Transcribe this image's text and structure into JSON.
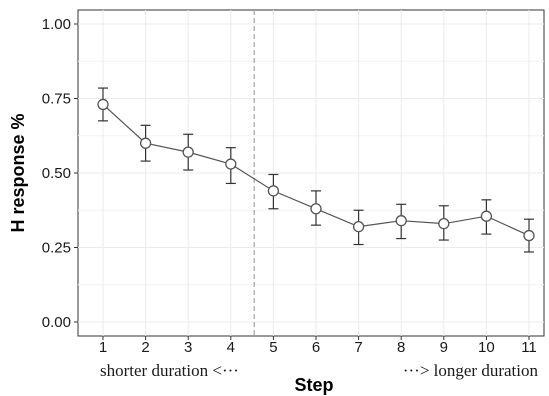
{
  "chart_data": {
    "type": "line",
    "title": "",
    "xlabel": "Step",
    "ylabel": "H response %",
    "x": [
      "1",
      "2",
      "3",
      "4",
      "5",
      "6",
      "7",
      "8",
      "9",
      "10",
      "11"
    ],
    "y_ticks": [
      "0.00",
      "0.25",
      "0.50",
      "0.75",
      "1.00"
    ],
    "ylim": [
      0.0,
      1.04
    ],
    "grid": true,
    "series": [
      {
        "values": [
          0.73,
          0.6,
          0.57,
          0.53,
          0.44,
          0.38,
          0.32,
          0.34,
          0.33,
          0.355,
          0.29
        ],
        "error_upper": [
          0.785,
          0.66,
          0.63,
          0.585,
          0.495,
          0.44,
          0.375,
          0.395,
          0.39,
          0.41,
          0.345
        ],
        "error_lower": [
          0.675,
          0.54,
          0.51,
          0.465,
          0.38,
          0.325,
          0.26,
          0.28,
          0.275,
          0.295,
          0.235
        ]
      }
    ],
    "reference_line_x": 4.55,
    "annotations": {
      "left": "shorter duration <···",
      "right": "···>  longer duration"
    },
    "colors": {
      "line": "#555555",
      "marker_fill": "#ffffff",
      "marker_stroke": "#555555",
      "grid": "#ebebeb",
      "reference_line": "#aaaaaa"
    }
  }
}
